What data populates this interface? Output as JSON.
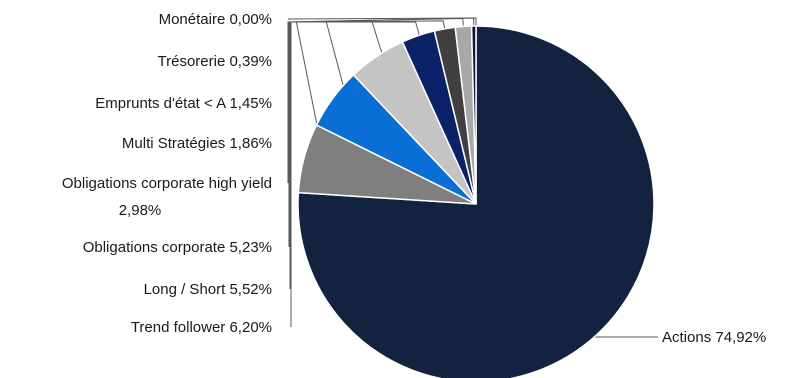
{
  "chart_data": {
    "type": "pie",
    "slices": [
      {
        "label": "Actions",
        "value_label": "74,92%",
        "value": 74.92,
        "color": "#13233f"
      },
      {
        "label": "Trend follower",
        "value_label": "6,20%",
        "value": 6.2,
        "color": "#7f7f7f"
      },
      {
        "label": "Long / Short",
        "value_label": "5,52%",
        "value": 5.52,
        "color": "#0a6fd4"
      },
      {
        "label": "Obligations corporate",
        "value_label": "5,23%",
        "value": 5.23,
        "color": "#c4c4c4"
      },
      {
        "label": "Obligations corporate high yield",
        "value_label": "2,98%",
        "value": 2.98,
        "color": "#0b2168"
      },
      {
        "label": "Multi Stratégies",
        "value_label": "1,86%",
        "value": 1.86,
        "color": "#404040"
      },
      {
        "label": "Emprunts d'état < A",
        "value_label": "1,45%",
        "value": 1.45,
        "color": "#a8a8a8"
      },
      {
        "label": "Trésorerie",
        "value_label": "0,39%",
        "value": 0.39,
        "color": "#0d1a36"
      },
      {
        "label": "Monétaire",
        "value_label": "0,00%",
        "value": 0.0,
        "color": "#d0d0d0"
      }
    ]
  }
}
